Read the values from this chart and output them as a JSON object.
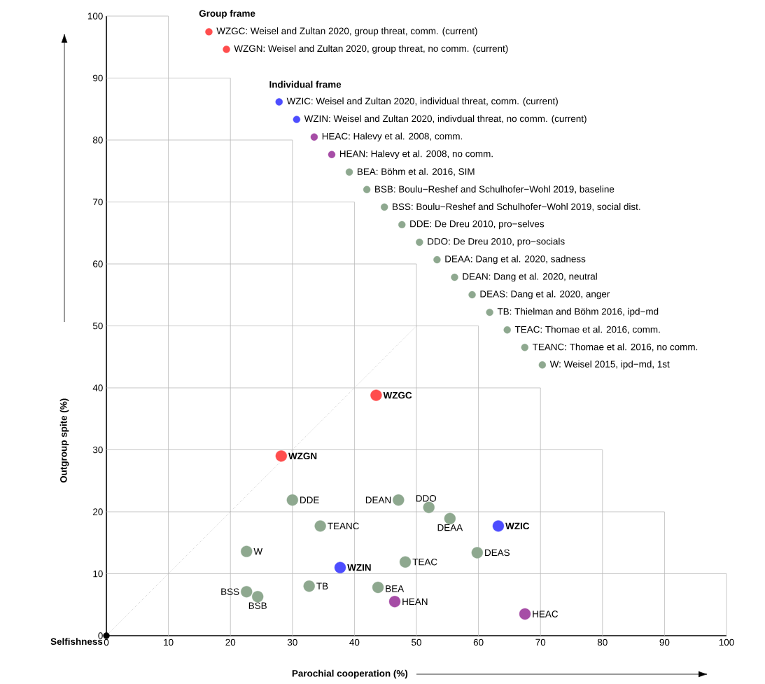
{
  "chart_data": {
    "type": "scatter",
    "xlabel": "Parochial cooperation (%)",
    "ylabel": "Outgroup spite (%)",
    "xlim": [
      0,
      100
    ],
    "ylim": [
      0,
      100
    ],
    "xticks": [
      0,
      10,
      20,
      30,
      40,
      50,
      60,
      70,
      80,
      90,
      100
    ],
    "yticks": [
      0,
      10,
      20,
      30,
      40,
      50,
      60,
      70,
      80,
      90,
      100
    ],
    "legend": "top right",
    "marker": "circle",
    "series": [
      {
        "type": "line",
        "color": "#b9b9b9",
        "marker": "none",
        "x": [
          10,
          10,
          0
        ],
        "values": [
          0,
          100,
          100
        ]
      },
      {
        "type": "line",
        "color": "#b9b9b9",
        "marker": "none",
        "x": [
          20,
          20,
          0
        ],
        "values": [
          0,
          90,
          90
        ]
      },
      {
        "type": "line",
        "color": "#b9b9b9",
        "marker": "none",
        "x": [
          30,
          30,
          0
        ],
        "values": [
          0,
          80,
          80
        ]
      },
      {
        "type": "line",
        "color": "#b9b9b9",
        "marker": "none",
        "x": [
          40,
          40,
          0
        ],
        "values": [
          0,
          70,
          70
        ]
      },
      {
        "type": "line",
        "color": "#b9b9b9",
        "marker": "none",
        "x": [
          50,
          50,
          0
        ],
        "values": [
          0,
          60,
          60
        ]
      },
      {
        "type": "line",
        "color": "#b9b9b9",
        "marker": "none",
        "x": [
          60,
          60,
          0
        ],
        "values": [
          0,
          50,
          50
        ]
      },
      {
        "type": "line",
        "color": "#b9b9b9",
        "marker": "none",
        "x": [
          70,
          70,
          0
        ],
        "values": [
          0,
          40,
          40
        ]
      },
      {
        "type": "line",
        "color": "#b9b9b9",
        "marker": "none",
        "x": [
          80,
          80,
          0
        ],
        "values": [
          0,
          30,
          30
        ]
      },
      {
        "type": "line",
        "color": "#b9b9b9",
        "marker": "none",
        "x": [
          90,
          90,
          0
        ],
        "values": [
          0,
          20,
          20
        ]
      },
      {
        "type": "line",
        "color": "#b9b9b9",
        "marker": "none",
        "x": [
          100,
          100,
          0
        ],
        "values": [
          0,
          10,
          10
        ]
      },
      {
        "name": "WZGC: Weisel and Zultan 2020, group threat, comm. (current)",
        "color": "#ff4d4d",
        "x": [
          43.5
        ],
        "values": [
          38.8
        ]
      },
      {
        "name": "WZGN: Weisel and Zultan 2020, group threat, no comm. (current)",
        "color": "#ff4d4d",
        "x": [
          28.2
        ],
        "values": [
          29.0
        ]
      },
      {
        "name": "WZIC: Weisel and Zultan 2020, individual threat, comm. (current)",
        "color": "#4d4dff",
        "x": [
          63.2
        ],
        "values": [
          17.7
        ]
      },
      {
        "name": "WZIN: Weisel and Zultan 2020, indivdual threat, no comm. (current)",
        "color": "#4d4dff",
        "x": [
          37.7
        ],
        "values": [
          11.0
        ]
      },
      {
        "name": "HEAC: Halevy et al. 2008, comm.",
        "color": "#a64da6",
        "x": [
          67.5
        ],
        "values": [
          3.5
        ]
      },
      {
        "name": "HEAN: Halevy et al. 2008, no comm.",
        "color": "#a64da6",
        "x": [
          46.5
        ],
        "values": [
          5.5
        ]
      },
      {
        "name": "BEA: Böhm et al. 2016, SIM",
        "color": "#8ea88f",
        "x": [
          43.8
        ],
        "values": [
          7.8
        ]
      },
      {
        "name": "BSB: Boulu−Reshef and Schulhofer−Wohl 2019, baseline",
        "color": "#8ea88f",
        "x": [
          24.4
        ],
        "values": [
          6.3
        ]
      },
      {
        "name": "BSS: Boulu−Reshef and Schulhofer−Wohl 2019, social dist.",
        "color": "#8ea88f",
        "x": [
          22.6
        ],
        "values": [
          7.1
        ]
      },
      {
        "name": "DDE: De Dreu 2010, pro−selves",
        "color": "#8ea88f",
        "x": [
          30.0
        ],
        "values": [
          21.9
        ]
      },
      {
        "name": "DDO: De Dreu 2010, pro−socials",
        "color": "#8ea88f",
        "x": [
          52.0
        ],
        "values": [
          20.7
        ]
      },
      {
        "name": "DEAA: Dang et al. 2020, sadness",
        "color": "#8ea88f",
        "x": [
          55.4
        ],
        "values": [
          18.9
        ]
      },
      {
        "name": "DEAN: Dang et al. 2020, neutral",
        "color": "#8ea88f",
        "x": [
          47.1
        ],
        "values": [
          21.9
        ]
      },
      {
        "name": "DEAS: Dang et al. 2020, anger",
        "color": "#8ea88f",
        "x": [
          59.8
        ],
        "values": [
          13.4
        ]
      },
      {
        "name": "TB: Thielman and Böhm 2016, ipd−md",
        "color": "#8ea88f",
        "x": [
          32.7
        ],
        "values": [
          8.0
        ]
      },
      {
        "name": "TEAC: Thomae et al. 2016, comm.",
        "color": "#8ea88f",
        "x": [
          48.2
        ],
        "values": [
          11.9
        ]
      },
      {
        "name": "TEANC: Thomae et al. 2016, no comm.",
        "color": "#8ea88f",
        "x": [
          34.5
        ],
        "values": [
          17.7
        ]
      },
      {
        "name": "W: Weisel 2015, ipd−md, 1st",
        "color": "#8ea88f",
        "x": [
          22.6
        ],
        "values": [
          13.6
        ]
      },
      {
        "color": "#000000",
        "x": [
          0
        ],
        "values": [
          0
        ]
      },
      {
        "type": "line",
        "color": "#aaaaaa",
        "line_style": "dotted",
        "marker": "none",
        "x": [
          0,
          50
        ],
        "values": [
          0,
          50
        ]
      }
    ],
    "annotations": [
      "Group frame",
      "Individual frame",
      {
        "text": "WZGC",
        "x": 43.5,
        "y": 38.8
      },
      {
        "text": "WZGN",
        "x": 28.2,
        "y": 29.0
      },
      {
        "text": "WZIC",
        "x": 63.2,
        "y": 17.7
      },
      {
        "text": "WZIN",
        "x": 37.7,
        "y": 11.0
      },
      {
        "text": "HEAC",
        "x": 67.5,
        "y": 3.5
      },
      {
        "text": "HEAN",
        "x": 46.5,
        "y": 5.5
      },
      {
        "text": "BEA",
        "x": 43.8,
        "y": 7.8
      },
      {
        "text": "BSB",
        "x": 24.4,
        "y": 6.3
      },
      {
        "text": "BSS",
        "x": 22.6,
        "y": 7.1
      },
      {
        "text": "DDE",
        "x": 30.0,
        "y": 21.9
      },
      {
        "text": "DDO",
        "x": 52.0,
        "y": 20.7
      },
      {
        "text": "DEAA",
        "x": 55.4,
        "y": 18.9
      },
      {
        "text": "DEAN",
        "x": 47.1,
        "y": 21.9
      },
      {
        "text": "DEAS",
        "x": 59.8,
        "y": 13.4
      },
      {
        "text": "TB",
        "x": 32.7,
        "y": 8.0
      },
      {
        "text": "TEAC",
        "x": 48.2,
        "y": 11.9
      },
      {
        "text": "TEANC",
        "x": 34.5,
        "y": 17.7
      },
      {
        "text": "W",
        "x": 22.6,
        "y": 13.6
      },
      {
        "text": "Selfishness",
        "x": 0,
        "y": 0
      }
    ]
  }
}
